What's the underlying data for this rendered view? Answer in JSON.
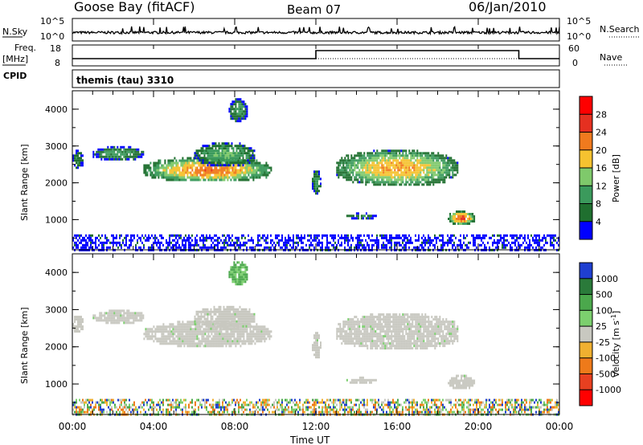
{
  "header": {
    "station": "Goose Bay (fitACF)",
    "beam": "Beam 07",
    "date": "06/Jan/2010"
  },
  "noise_panel": {
    "left_label": "N.Sky",
    "left_ticks": [
      "10^5",
      "10^0"
    ],
    "right_ticks": [
      "10^5",
      "10^0"
    ],
    "right_label": "N.Search"
  },
  "freq_panel": {
    "left_label_line1": "Freq.",
    "left_label_line2": "[MHz]",
    "left_ticks": [
      "18",
      "8"
    ],
    "right_ticks": [
      "60",
      "0"
    ],
    "right_label": "Nave",
    "cpid_label": "CPID",
    "cpid_text": "themis (tau) 3310"
  },
  "time_axis": {
    "label": "Time UT",
    "ticks": [
      "00:00",
      "04:00",
      "08:00",
      "12:00",
      "16:00",
      "20:00",
      "00:00"
    ]
  },
  "range_axis": {
    "label": "Slant Range [km]",
    "ticks": [
      "1000",
      "2000",
      "3000",
      "4000"
    ]
  },
  "power_scale": {
    "label": "Power [dB]",
    "levels": [
      "4",
      "8",
      "12",
      "16",
      "20",
      "24",
      "28"
    ],
    "colors": [
      "#0000ff",
      "#1f6f2f",
      "#3b9a5c",
      "#7fc96b",
      "#f5c230",
      "#f07a1e",
      "#e53020",
      "#ff0000"
    ]
  },
  "velocity_scale": {
    "label": "Velocity [m s^-1]",
    "levels": [
      "1000",
      "500",
      "100",
      "25",
      "-25",
      "-100",
      "-500",
      "-1000"
    ],
    "colors": [
      "#1f3fd0",
      "#2a7a3a",
      "#4ba84c",
      "#7ccf6e",
      "#c8c8c0",
      "#f0b030",
      "#ee7a1a",
      "#e84020",
      "#ff0000"
    ]
  },
  "chart_data": {
    "type": "heatmap",
    "panels": [
      "power",
      "velocity"
    ],
    "x_range_hours": [
      0,
      24
    ],
    "y_range_km": [
      180,
      4500
    ],
    "frequency_step_hour": 12.0,
    "frequency_step_hour_end": 22.0,
    "echo_regions": [
      {
        "t0": 0.0,
        "t1": 0.5,
        "r0": 2400,
        "r1": 2900,
        "power": 6,
        "vel": "grey"
      },
      {
        "t0": 1.0,
        "t1": 3.5,
        "r0": 2650,
        "r1": 3000,
        "power": 8,
        "vel": "grey"
      },
      {
        "t0": 3.5,
        "t1": 9.8,
        "r0": 2050,
        "r1": 2700,
        "power": 18,
        "vel": "grey"
      },
      {
        "t0": 6.0,
        "t1": 9.0,
        "r0": 2500,
        "r1": 3100,
        "power": 10,
        "vel": "grey"
      },
      {
        "t0": 7.7,
        "t1": 8.6,
        "r0": 3700,
        "r1": 4300,
        "power": 8,
        "vel": "green"
      },
      {
        "t0": 11.8,
        "t1": 12.2,
        "r0": 1700,
        "r1": 2400,
        "power": 8,
        "vel": "grey"
      },
      {
        "t0": 13.0,
        "t1": 19.0,
        "r0": 1950,
        "r1": 2900,
        "power": 16,
        "vel": "grey"
      },
      {
        "t0": 13.5,
        "t1": 15.0,
        "r0": 1050,
        "r1": 1200,
        "power": 6,
        "vel": "grey"
      },
      {
        "t0": 18.5,
        "t1": 19.8,
        "r0": 900,
        "r1": 1250,
        "power": 20,
        "vel": "grey"
      },
      {
        "t0": 0.0,
        "t1": 24.0,
        "r0": 180,
        "r1": 600,
        "power": 4,
        "vel": "mixed"
      }
    ]
  }
}
